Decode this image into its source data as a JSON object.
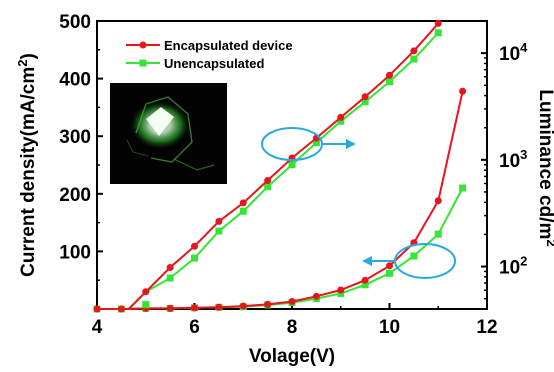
{
  "chart_data": {
    "type": "line",
    "x_label": "Volage(V)",
    "y_left_label": "Current density(mA/cm",
    "y_left_label_sup": "2",
    "y_left_label_end": ")",
    "y_right_label": "Luminance cd/m",
    "y_right_label_sup": "2",
    "x_range": [
      4,
      12
    ],
    "x_ticks": [
      4,
      6,
      8,
      10,
      12
    ],
    "y_left_range": [
      0,
      500
    ],
    "y_left_ticks": [
      100,
      200,
      300,
      400,
      500
    ],
    "y_right_scale": "log",
    "y_right_range": [
      40,
      20000
    ],
    "y_right_ticks": [
      {
        "value": 100,
        "base": "10",
        "exp": "2"
      },
      {
        "value": 1000,
        "base": "10",
        "exp": "3"
      },
      {
        "value": 10000,
        "base": "10",
        "exp": "4"
      }
    ],
    "legend": [
      {
        "label": "Encapsulated device",
        "color": "#e8141e",
        "marker": "circle"
      },
      {
        "label": "Unencapsulated",
        "color": "#33e633",
        "marker": "square"
      }
    ],
    "current_density": [
      {
        "name": "Encapsulated device",
        "color": "#e8141e",
        "x": [
          4.0,
          4.5,
          5.0,
          5.5,
          6.0,
          6.5,
          7.0,
          7.5,
          8.0,
          8.5,
          9.0,
          9.5,
          10.0,
          10.5,
          11.0,
          11.5
        ],
        "y": [
          0,
          0,
          1,
          1,
          2,
          3,
          5,
          8,
          13,
          22,
          33,
          50,
          75,
          115,
          188,
          378
        ]
      },
      {
        "name": "Unencapsulated",
        "color": "#33e633",
        "x": [
          4.0,
          4.5,
          5.0,
          5.5,
          6.0,
          6.5,
          7.0,
          7.5,
          8.0,
          8.5,
          9.0,
          9.5,
          10.0,
          10.5,
          11.0,
          11.5
        ],
        "y": [
          0,
          0,
          1,
          1,
          2,
          3,
          4,
          7,
          11,
          18,
          27,
          42,
          62,
          92,
          130,
          210
        ]
      }
    ],
    "luminance": [
      {
        "name": "Encapsulated device",
        "color": "#e8141e",
        "x": [
          5.0,
          5.5,
          6.0,
          6.5,
          7.0,
          7.5,
          8.0,
          8.5,
          9.0,
          9.5,
          10.0,
          10.5,
          11.0
        ],
        "y": [
          58,
          98,
          155,
          265,
          395,
          640,
          1040,
          1600,
          2500,
          3900,
          6200,
          10500,
          19000
        ]
      },
      {
        "name": "Unencapsulated",
        "color": "#33e633",
        "x": [
          5.0,
          5.5,
          6.0,
          6.5,
          7.0,
          7.5,
          8.0,
          8.5,
          9.0,
          9.5,
          10.0,
          10.5,
          11.0
        ],
        "y": [
          44,
          78,
          120,
          215,
          330,
          560,
          900,
          1450,
          2300,
          3500,
          5400,
          8800,
          15500
        ]
      }
    ],
    "luminance_leadin": {
      "x": [
        4.5,
        4.65,
        5.0
      ],
      "y": [
        40,
        40,
        58
      ]
    },
    "annotations": [
      {
        "target": "luminance",
        "arrow": "right"
      },
      {
        "target": "current_density",
        "arrow": "left"
      }
    ]
  }
}
